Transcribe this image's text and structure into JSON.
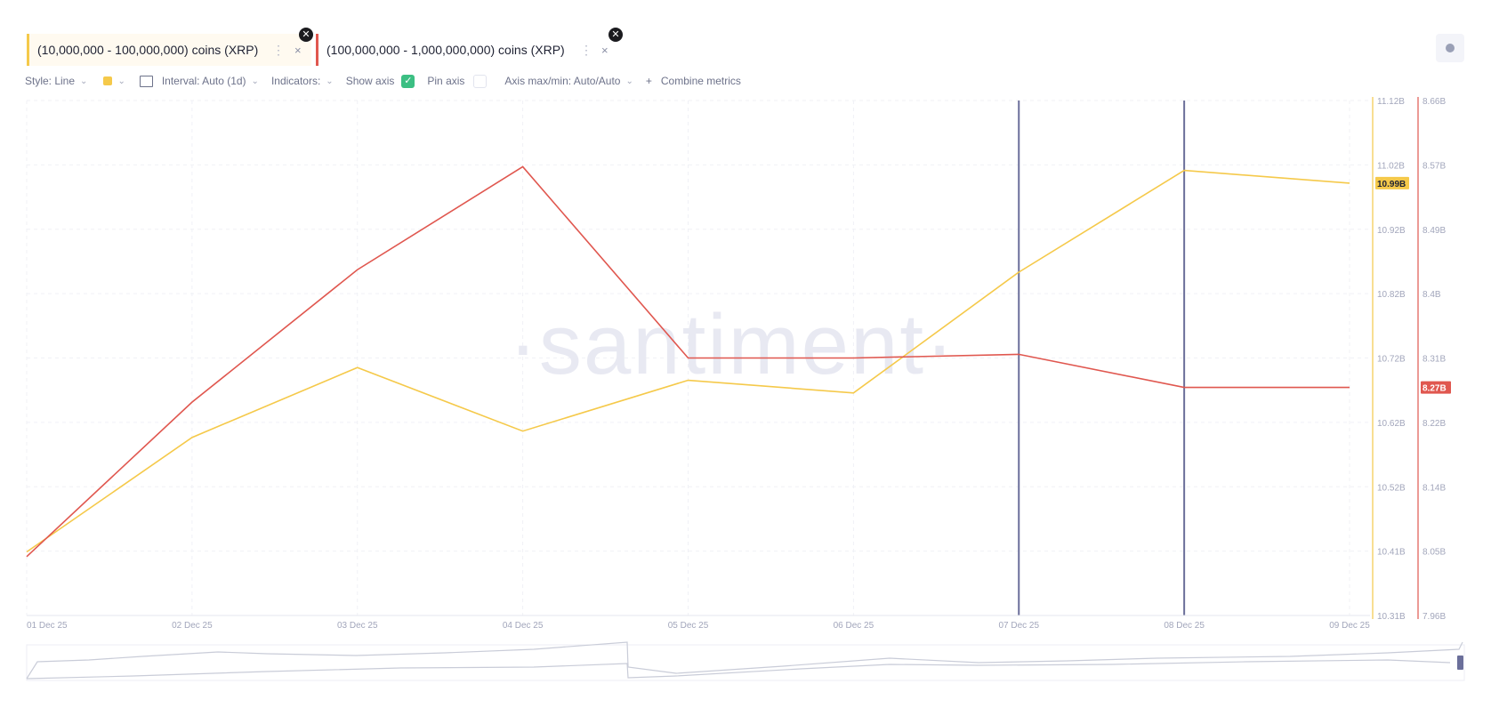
{
  "tabs": [
    {
      "label": "(10,000,000 - 100,000,000) coins (XRP)",
      "color": "#f5c94a"
    },
    {
      "label": "(100,000,000 - 1,000,000,000) coins (XRP)",
      "color": "#e0574f"
    }
  ],
  "toolbar": {
    "style": "Style: Line",
    "interval": "Interval: Auto (1d)",
    "indicators": "Indicators:",
    "show_axis": "Show axis",
    "show_axis_checked": true,
    "pin_axis": "Pin axis",
    "pin_axis_checked": false,
    "axis_maxmin": "Axis max/min: Auto/Auto",
    "combine": "Combine metrics"
  },
  "watermark": "·santiment·",
  "chart_data": {
    "type": "line",
    "x": [
      "01 Dec 25",
      "02 Dec 25",
      "03 Dec 25",
      "04 Dec 25",
      "05 Dec 25",
      "06 Dec 25",
      "07 Dec 25",
      "08 Dec 25",
      "09 Dec 25"
    ],
    "series": [
      {
        "name": "(10,000,000 - 100,000,000) coins (XRP)",
        "color": "#f5c94a",
        "axis": "left",
        "values": [
          10.41,
          10.59,
          10.7,
          10.6,
          10.68,
          10.66,
          10.85,
          11.01,
          10.99
        ],
        "last_label": "10.99B"
      },
      {
        "name": "(100,000,000 - 1,000,000,000) coins (XRP)",
        "color": "#e0574f",
        "axis": "right",
        "values": [
          8.04,
          8.25,
          8.43,
          8.57,
          8.31,
          8.31,
          8.315,
          8.27,
          8.27
        ],
        "last_label": "8.27B"
      }
    ],
    "y_axes": [
      {
        "range": [
          10.31,
          11.12
        ],
        "unit": "B",
        "ticks": [
          "11.12B",
          "11.02B",
          "10.92B",
          "10.82B",
          "10.72B",
          "10.62B",
          "10.52B",
          "10.41B",
          "10.31B"
        ]
      },
      {
        "range": [
          7.96,
          8.66
        ],
        "unit": "B",
        "ticks": [
          "8.66B",
          "8.57B",
          "8.49B",
          "8.4B",
          "8.31B",
          "8.22B",
          "8.14B",
          "8.05B",
          "7.96B"
        ]
      }
    ],
    "vertical_markers": [
      "07 Dec 25",
      "08 Dec 25"
    ],
    "marker_color": "#6b6f9a",
    "grid": true
  }
}
